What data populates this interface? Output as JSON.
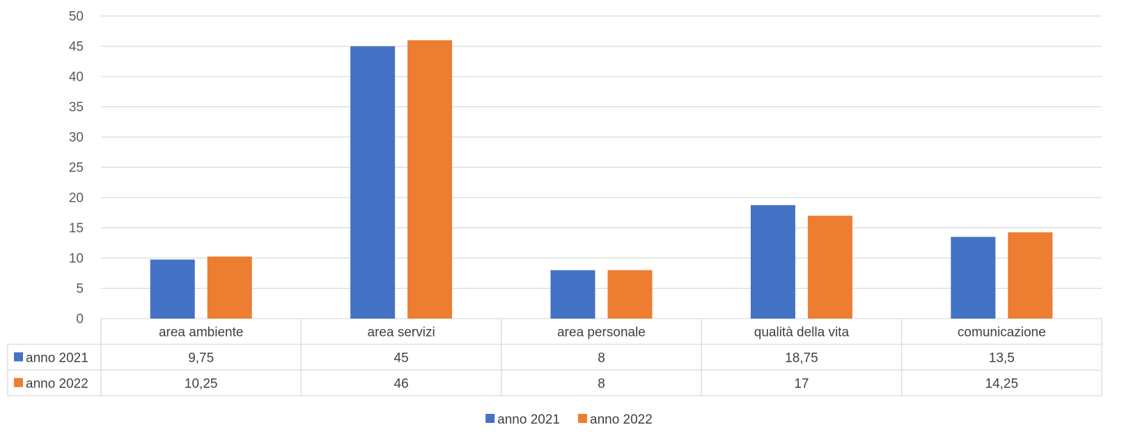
{
  "chart_data": {
    "type": "bar",
    "title": "",
    "xlabel": "",
    "ylabel": "",
    "ylim": [
      0,
      50
    ],
    "yticks": [
      0,
      5,
      10,
      15,
      20,
      25,
      30,
      35,
      40,
      45,
      50
    ],
    "grid": true,
    "legend": "bottom",
    "data_table": true,
    "categories": [
      "area ambiente",
      "area servizi",
      "area personale",
      "qualità della vita",
      "comunicazione"
    ],
    "series": [
      {
        "name": "anno 2021",
        "color": "#4472C4",
        "values": [
          9.75,
          45,
          8,
          18.75,
          13.5
        ],
        "labels": [
          "9,75",
          "45",
          "8",
          "18,75",
          "13,5"
        ]
      },
      {
        "name": "anno 2022",
        "color": "#ED7D31",
        "values": [
          10.25,
          46,
          8,
          17,
          14.25
        ],
        "labels": [
          "10,25",
          "46",
          "8",
          "17",
          "14,25"
        ]
      }
    ]
  }
}
